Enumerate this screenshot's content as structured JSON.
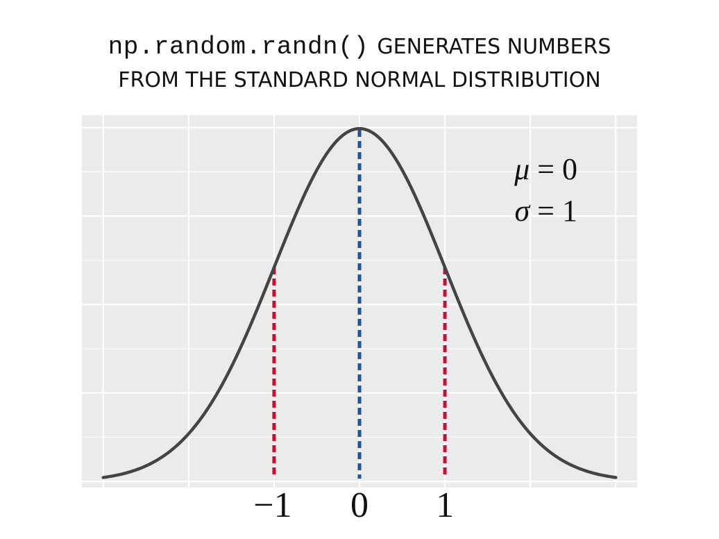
{
  "title": {
    "code": "np.random.randn()",
    "line1_text": "GENERATES NUMBERS",
    "line2_text": "FROM THE STANDARD NORMAL DISTRIBUTION"
  },
  "chart_data": {
    "type": "line",
    "title": "np.random.randn() GENERATES NUMBERS FROM THE STANDARD NORMAL DISTRIBUTION",
    "series": [
      {
        "name": "",
        "function": "standard-normal-pdf",
        "mean": 0,
        "sd": 1,
        "x_range": [
          -3,
          3
        ],
        "color": "#444444"
      }
    ],
    "vlines": [
      {
        "x": -1,
        "style": "dashed",
        "color": "#c8102e"
      },
      {
        "x": 0,
        "style": "dashed",
        "color": "#1f5591"
      },
      {
        "x": 1,
        "style": "dashed",
        "color": "#c8102e"
      }
    ],
    "x_ticks": [
      -1,
      0,
      1
    ],
    "x_tick_labels": [
      "−1",
      "0",
      "1"
    ],
    "xlim": [
      -3.25,
      3.25
    ],
    "ylim": [
      -0.007,
      0.414
    ],
    "y_gridlines": [
      0,
      0.05,
      0.1,
      0.15,
      0.2,
      0.25,
      0.3,
      0.35,
      0.4
    ],
    "x_gridlines": [
      -3,
      -2,
      -1,
      0,
      1,
      2,
      3
    ],
    "annotations": [
      {
        "text": "μ = 0",
        "symbol": "μ",
        "rest": " = 0"
      },
      {
        "text": "σ = 1",
        "symbol": "σ",
        "rest": " = 1"
      }
    ],
    "grid": true,
    "background": "#ebebeb",
    "gridline_color": "#ffffff"
  }
}
